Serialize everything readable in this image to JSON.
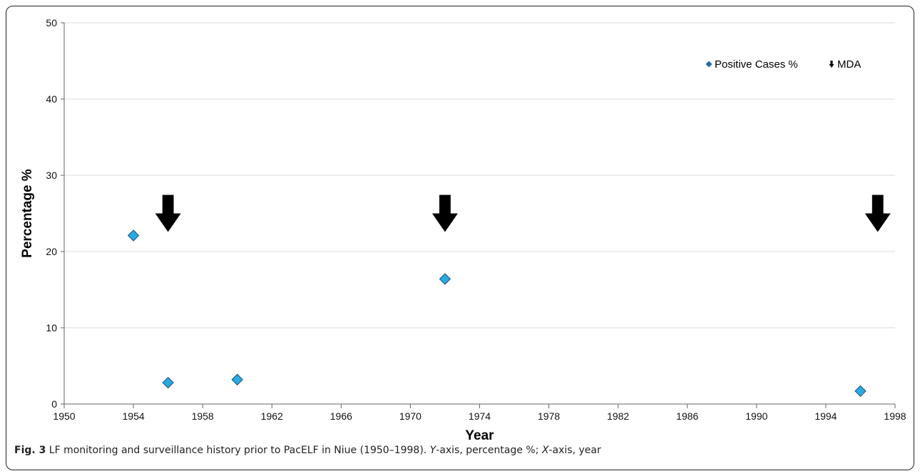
{
  "chart_data": {
    "type": "scatter",
    "xlabel": "Year",
    "ylabel": "Percentage %",
    "xlim": [
      1950,
      1998
    ],
    "ylim": [
      0,
      50
    ],
    "xticks": [
      1950,
      1954,
      1958,
      1962,
      1966,
      1970,
      1974,
      1978,
      1982,
      1986,
      1990,
      1994,
      1998
    ],
    "yticks": [
      0,
      10,
      20,
      30,
      40,
      50
    ],
    "grid": "horizontal",
    "legend_position": "top-right",
    "series": [
      {
        "name": "Positive Cases %",
        "marker": "diamond",
        "color": "#29abe2",
        "points": [
          {
            "x": 1954,
            "y": 22.1
          },
          {
            "x": 1956,
            "y": 2.8
          },
          {
            "x": 1960,
            "y": 3.2
          },
          {
            "x": 1972,
            "y": 16.4
          },
          {
            "x": 1996,
            "y": 1.7
          }
        ]
      },
      {
        "name": "MDA",
        "marker": "arrow-down",
        "color": "#000000",
        "points": [
          {
            "x": 1956,
            "y": 25
          },
          {
            "x": 1972,
            "y": 25
          },
          {
            "x": 1997,
            "y": 25
          }
        ]
      }
    ]
  },
  "caption": {
    "label": "Fig. 3",
    "text_1": " LF monitoring and surveillance history prior to PacELF in Niue (1950–1998). ",
    "y_italic": "Y",
    "text_2": "-axis, percentage %; ",
    "x_italic": "X",
    "text_3": "-axis, year"
  }
}
